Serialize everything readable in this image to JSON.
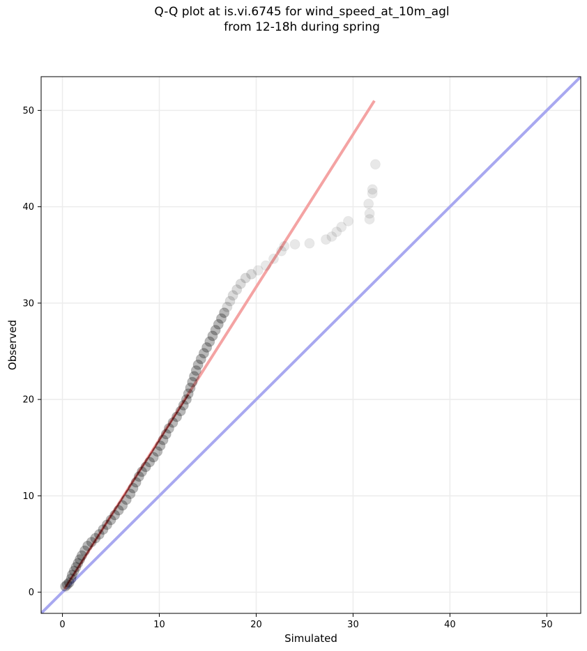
{
  "chart_data": {
    "type": "scatter",
    "title_line1": "Q-Q plot at is.vi.6745 for wind_speed_at_10m_agl",
    "title_line2": "from 12-18h during spring",
    "xlabel": "Simulated",
    "ylabel": "Observed",
    "xlim": [
      -2.2,
      53.5
    ],
    "ylim": [
      -2.2,
      53.5
    ],
    "xticks": [
      0,
      10,
      20,
      30,
      40,
      50
    ],
    "yticks": [
      0,
      10,
      20,
      30,
      40,
      50
    ],
    "grid": true,
    "colors": {
      "points": "#000000",
      "fit_line": "#f4a3a3",
      "identity_line": "#a8a8f0",
      "fit_dark": "#8b0000"
    },
    "series": [
      {
        "points": [
          [
            0.3,
            0.6
          ],
          [
            0.5,
            0.8
          ],
          [
            0.7,
            1.0
          ],
          [
            0.9,
            1.4
          ],
          [
            1.0,
            1.8
          ],
          [
            1.2,
            2.2
          ],
          [
            1.4,
            2.6
          ],
          [
            1.6,
            3.0
          ],
          [
            1.8,
            3.4
          ],
          [
            2.0,
            3.8
          ],
          [
            2.3,
            4.3
          ],
          [
            2.6,
            4.8
          ],
          [
            3.0,
            5.2
          ],
          [
            3.4,
            5.6
          ],
          [
            3.8,
            6.0
          ],
          [
            4.2,
            6.5
          ],
          [
            4.6,
            7.0
          ],
          [
            5.0,
            7.5
          ],
          [
            5.4,
            8.0
          ],
          [
            5.8,
            8.5
          ],
          [
            6.2,
            9.0
          ],
          [
            6.6,
            9.6
          ],
          [
            7.0,
            10.2
          ],
          [
            7.3,
            10.8
          ],
          [
            7.6,
            11.4
          ],
          [
            7.9,
            12.0
          ],
          [
            8.2,
            12.5
          ],
          [
            8.6,
            13.0
          ],
          [
            9.0,
            13.5
          ],
          [
            9.4,
            14.0
          ],
          [
            9.8,
            14.6
          ],
          [
            10.1,
            15.2
          ],
          [
            10.4,
            15.8
          ],
          [
            10.7,
            16.4
          ],
          [
            11.0,
            17.0
          ],
          [
            11.4,
            17.6
          ],
          [
            11.8,
            18.2
          ],
          [
            12.2,
            18.8
          ],
          [
            12.5,
            19.4
          ],
          [
            12.8,
            20.0
          ],
          [
            13.0,
            20.6
          ],
          [
            13.2,
            21.2
          ],
          [
            13.4,
            21.8
          ],
          [
            13.6,
            22.4
          ],
          [
            13.8,
            23.0
          ],
          [
            14.0,
            23.6
          ],
          [
            14.3,
            24.2
          ],
          [
            14.6,
            24.8
          ],
          [
            14.9,
            25.4
          ],
          [
            15.2,
            26.0
          ],
          [
            15.5,
            26.6
          ],
          [
            15.8,
            27.2
          ],
          [
            16.1,
            27.8
          ],
          [
            16.4,
            28.4
          ],
          [
            16.7,
            29.0
          ],
          [
            17.0,
            29.6
          ],
          [
            17.3,
            30.2
          ],
          [
            17.6,
            30.8
          ],
          [
            18.0,
            31.4
          ],
          [
            18.4,
            32.0
          ],
          [
            18.9,
            32.6
          ],
          [
            19.5,
            33.0
          ],
          [
            20.2,
            33.4
          ],
          [
            21.0,
            33.9
          ],
          [
            21.8,
            34.6
          ],
          [
            22.6,
            35.4
          ],
          [
            22.9,
            35.9
          ],
          [
            24.0,
            36.1
          ],
          [
            25.5,
            36.2
          ],
          [
            27.2,
            36.6
          ],
          [
            27.8,
            36.9
          ],
          [
            28.3,
            37.4
          ],
          [
            28.8,
            37.9
          ],
          [
            29.5,
            38.5
          ],
          [
            31.7,
            38.7
          ],
          [
            31.7,
            39.3
          ],
          [
            31.6,
            40.3
          ],
          [
            32.0,
            41.4
          ],
          [
            32.0,
            41.8
          ],
          [
            32.3,
            44.4
          ]
        ]
      }
    ],
    "fit_line": {
      "x": [
        0.2,
        32.2
      ],
      "y": [
        0.3,
        51.0
      ]
    },
    "identity_line": {
      "x": [
        -2.2,
        53.5
      ],
      "y": [
        -2.2,
        53.5
      ]
    }
  }
}
